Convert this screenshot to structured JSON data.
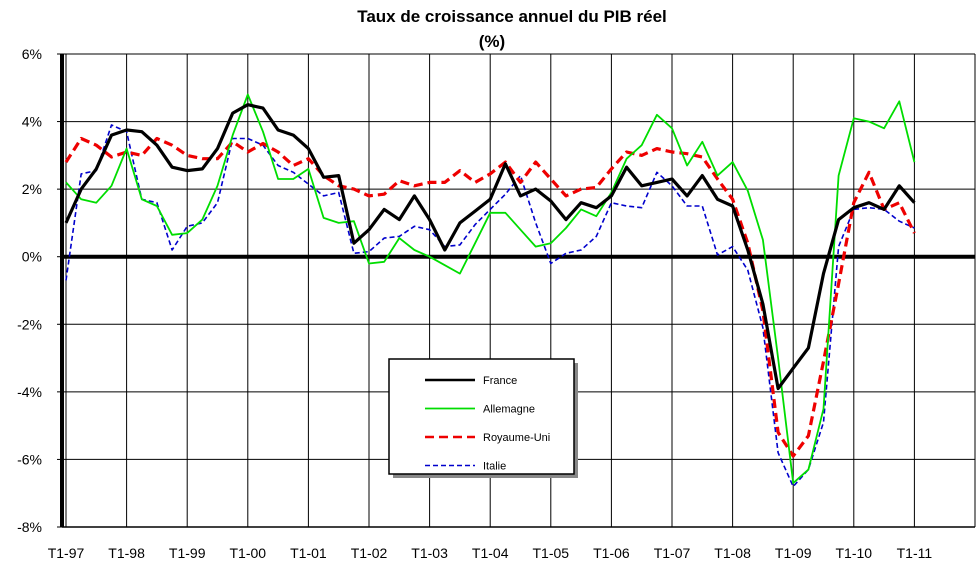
{
  "chart_data": {
    "type": "line",
    "title": "Taux de croissance annuel du PIB réel",
    "subtitle": "(%)",
    "xlabel": "",
    "ylabel": "",
    "ylim": [
      -8,
      6
    ],
    "y_ticks": [
      "6%",
      "4%",
      "2%",
      "0%",
      "-2%",
      "-4%",
      "-6%",
      "-8%"
    ],
    "x_tick_labels": [
      "T1-97",
      "T1-98",
      "T1-99",
      "T1-00",
      "T1-01",
      "T1-02",
      "T1-03",
      "T1-04",
      "T1-05",
      "T1-06",
      "T1-07",
      "T1-08",
      "T1-09",
      "T1-10",
      "T1-11"
    ],
    "grid": true,
    "legend_position": "bottom-center",
    "x_start": "T1-97",
    "series": [
      {
        "name": "France",
        "color": "#000000",
        "dash": "solid",
        "values": [
          1.0,
          2.0,
          2.6,
          3.6,
          3.75,
          3.7,
          3.3,
          2.65,
          2.55,
          2.6,
          3.2,
          4.25,
          4.5,
          4.4,
          3.75,
          3.6,
          3.2,
          2.35,
          2.4,
          0.4,
          0.8,
          1.4,
          1.1,
          1.8,
          1.1,
          0.2,
          1.0,
          1.35,
          1.7,
          2.75,
          1.8,
          2.0,
          1.65,
          1.1,
          1.6,
          1.45,
          1.8,
          2.65,
          2.1,
          2.2,
          2.3,
          1.8,
          2.4,
          1.7,
          1.5,
          0.2,
          -1.4,
          -3.9,
          -3.3,
          -2.7,
          -0.5,
          1.1,
          1.45,
          1.6,
          1.4,
          2.1,
          1.6
        ]
      },
      {
        "name": "Allemagne",
        "color": "#00dd00",
        "dash": "solid",
        "values": [
          2.2,
          1.7,
          1.6,
          2.1,
          3.2,
          1.7,
          1.5,
          0.65,
          0.7,
          1.1,
          2.1,
          3.6,
          4.8,
          3.7,
          2.3,
          2.3,
          2.6,
          1.15,
          1.0,
          1.05,
          -0.2,
          -0.15,
          0.55,
          0.2,
          0.0,
          -0.25,
          -0.5,
          0.4,
          1.3,
          1.3,
          0.8,
          0.3,
          0.4,
          0.85,
          1.4,
          1.2,
          1.9,
          2.9,
          3.3,
          4.2,
          3.8,
          2.7,
          3.4,
          2.4,
          2.8,
          1.95,
          0.5,
          -3.0,
          -6.7,
          -6.3,
          -4.5,
          2.4,
          4.1,
          4.0,
          3.8,
          4.6,
          2.8
        ]
      },
      {
        "name": "Royaume-Uni",
        "color": "#ee0000",
        "dash": "dashed",
        "values": [
          2.8,
          3.5,
          3.3,
          2.95,
          3.1,
          3.0,
          3.5,
          3.3,
          3.0,
          2.9,
          2.9,
          3.4,
          3.1,
          3.35,
          3.1,
          2.7,
          2.9,
          2.4,
          2.1,
          2.0,
          1.8,
          1.85,
          2.25,
          2.1,
          2.2,
          2.2,
          2.55,
          2.2,
          2.45,
          2.8,
          2.2,
          2.8,
          2.3,
          1.8,
          2.0,
          2.05,
          2.6,
          3.1,
          3.0,
          3.2,
          3.1,
          3.05,
          2.95,
          2.3,
          1.7,
          0.4,
          -1.6,
          -5.2,
          -5.9,
          -5.3,
          -3.1,
          -0.8,
          1.6,
          2.5,
          1.4,
          1.6,
          0.7
        ]
      },
      {
        "name": "Italie",
        "color": "#0000cc",
        "dash": "dashed",
        "values": [
          -0.7,
          2.45,
          2.55,
          3.9,
          3.7,
          1.7,
          1.6,
          0.2,
          0.9,
          1.0,
          1.6,
          3.5,
          3.5,
          3.3,
          2.7,
          2.5,
          2.15,
          1.8,
          1.9,
          0.1,
          0.15,
          0.55,
          0.6,
          0.9,
          0.8,
          0.3,
          0.35,
          0.95,
          1.4,
          1.85,
          2.4,
          1.0,
          -0.2,
          0.1,
          0.2,
          0.6,
          1.6,
          1.5,
          1.45,
          2.5,
          2.1,
          1.5,
          1.5,
          0.05,
          0.3,
          -0.4,
          -2.1,
          -5.8,
          -6.8,
          -6.3,
          -4.9,
          0.3,
          1.4,
          1.45,
          1.4,
          1.05,
          0.85
        ]
      }
    ]
  }
}
